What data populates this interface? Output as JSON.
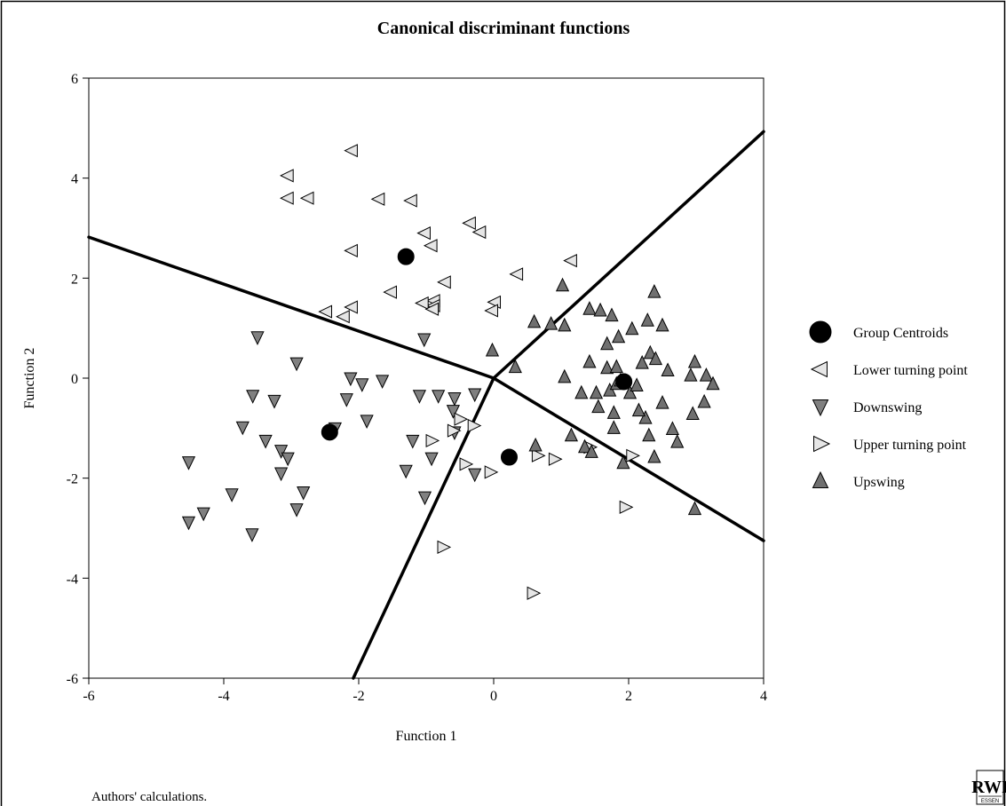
{
  "chart_data": {
    "type": "scatter",
    "title": "Canonical discriminant functions",
    "xlabel": "Function 1",
    "ylabel": "Function 2",
    "xlim": [
      -6,
      4
    ],
    "ylim": [
      -6,
      6
    ],
    "xticks": [
      "-6",
      "-4",
      "-2",
      "0",
      "2",
      "4"
    ],
    "yticks": [
      "-6",
      "-4",
      "-2",
      "0",
      "2",
      "4",
      "6"
    ],
    "grid": false,
    "legend_placement": "right",
    "boundaries": [
      [
        [
          -6.0,
          2.82
        ],
        [
          0.0,
          0.0
        ]
      ],
      [
        [
          0.0,
          0.0
        ],
        [
          4.0,
          4.93
        ]
      ],
      [
        [
          0.0,
          0.0
        ],
        [
          4.0,
          -3.25
        ]
      ],
      [
        [
          0.0,
          0.0
        ],
        [
          -2.08,
          -6.0
        ]
      ]
    ],
    "series": [
      {
        "name": "Group Centroids",
        "marker": "circle",
        "color": "#000000",
        "points": [
          [
            -1.3,
            2.43
          ],
          [
            -2.43,
            -1.08
          ],
          [
            0.23,
            -1.58
          ],
          [
            1.93,
            -0.07
          ]
        ]
      },
      {
        "name": "Lower turning point",
        "marker": "triangle-left",
        "color": "#e6e6e6",
        "points": [
          [
            -2.1,
            4.55
          ],
          [
            -3.05,
            4.05
          ],
          [
            -3.05,
            3.6
          ],
          [
            -2.75,
            3.6
          ],
          [
            -1.7,
            3.58
          ],
          [
            -1.22,
            3.55
          ],
          [
            -0.35,
            3.1
          ],
          [
            -0.2,
            2.92
          ],
          [
            -1.02,
            2.9
          ],
          [
            -0.92,
            2.65
          ],
          [
            -2.1,
            2.55
          ],
          [
            1.15,
            2.35
          ],
          [
            0.35,
            2.08
          ],
          [
            -0.72,
            1.92
          ],
          [
            -1.52,
            1.72
          ],
          [
            -0.88,
            1.55
          ],
          [
            -0.88,
            1.45
          ],
          [
            -1.05,
            1.5
          ],
          [
            -0.9,
            1.38
          ],
          [
            0.02,
            1.52
          ],
          [
            -0.02,
            1.35
          ],
          [
            -2.1,
            1.42
          ],
          [
            -2.48,
            1.33
          ],
          [
            -2.22,
            1.23
          ]
        ]
      },
      {
        "name": "Downswing",
        "marker": "triangle-down",
        "color": "#808080",
        "points": [
          [
            -3.5,
            0.82
          ],
          [
            -1.03,
            0.78
          ],
          [
            -2.92,
            0.3
          ],
          [
            -3.57,
            -0.35
          ],
          [
            -3.25,
            -0.45
          ],
          [
            -3.72,
            -0.98
          ],
          [
            -3.38,
            -1.25
          ],
          [
            -2.12,
            0.0
          ],
          [
            -1.95,
            -0.12
          ],
          [
            -1.65,
            -0.05
          ],
          [
            -2.18,
            -0.42
          ],
          [
            -1.88,
            -0.85
          ],
          [
            -2.35,
            -1.0
          ],
          [
            -3.15,
            -1.45
          ],
          [
            -3.05,
            -1.6
          ],
          [
            -3.15,
            -1.9
          ],
          [
            -4.52,
            -1.68
          ],
          [
            -3.88,
            -2.32
          ],
          [
            -2.82,
            -2.28
          ],
          [
            -2.92,
            -2.62
          ],
          [
            -4.52,
            -2.88
          ],
          [
            -4.3,
            -2.7
          ],
          [
            -3.58,
            -3.12
          ],
          [
            -1.1,
            -0.35
          ],
          [
            -0.82,
            -0.35
          ],
          [
            -0.58,
            -0.4
          ],
          [
            -0.28,
            -0.32
          ],
          [
            -0.6,
            -0.65
          ],
          [
            -1.2,
            -1.25
          ],
          [
            -0.92,
            -1.6
          ],
          [
            -1.3,
            -1.85
          ],
          [
            -0.58,
            -1.08
          ],
          [
            -0.28,
            -1.92
          ],
          [
            -1.02,
            -2.38
          ]
        ]
      },
      {
        "name": "Upper turning point",
        "marker": "triangle-right",
        "color": "#e6e6e6",
        "points": [
          [
            -0.5,
            -0.82
          ],
          [
            -0.3,
            -0.95
          ],
          [
            -0.6,
            -1.05
          ],
          [
            -0.92,
            -1.25
          ],
          [
            -0.42,
            -1.72
          ],
          [
            -0.05,
            -1.88
          ],
          [
            0.65,
            -1.55
          ],
          [
            0.9,
            -1.62
          ],
          [
            1.42,
            -1.38
          ],
          [
            2.05,
            -1.55
          ],
          [
            1.95,
            -2.58
          ],
          [
            -0.75,
            -3.38
          ],
          [
            0.58,
            -4.3
          ]
        ]
      },
      {
        "name": "Upswing",
        "marker": "triangle-up",
        "color": "#707070",
        "points": [
          [
            1.02,
            1.85
          ],
          [
            2.38,
            1.72
          ],
          [
            1.42,
            1.38
          ],
          [
            1.58,
            1.35
          ],
          [
            1.75,
            1.25
          ],
          [
            2.28,
            1.15
          ],
          [
            0.6,
            1.12
          ],
          [
            0.85,
            1.08
          ],
          [
            1.05,
            1.05
          ],
          [
            2.5,
            1.05
          ],
          [
            2.05,
            0.98
          ],
          [
            1.68,
            0.68
          ],
          [
            1.85,
            0.82
          ],
          [
            -0.02,
            0.55
          ],
          [
            1.42,
            0.32
          ],
          [
            1.68,
            0.2
          ],
          [
            1.82,
            0.22
          ],
          [
            2.2,
            0.3
          ],
          [
            2.32,
            0.5
          ],
          [
            2.4,
            0.38
          ],
          [
            2.58,
            0.15
          ],
          [
            2.98,
            0.32
          ],
          [
            3.15,
            0.05
          ],
          [
            3.25,
            -0.12
          ],
          [
            2.92,
            0.05
          ],
          [
            1.05,
            0.02
          ],
          [
            1.3,
            -0.3
          ],
          [
            1.52,
            -0.3
          ],
          [
            1.72,
            -0.25
          ],
          [
            1.82,
            -0.12
          ],
          [
            1.88,
            -0.05
          ],
          [
            2.02,
            -0.3
          ],
          [
            2.12,
            -0.15
          ],
          [
            1.55,
            -0.58
          ],
          [
            2.25,
            -0.8
          ],
          [
            2.15,
            -0.65
          ],
          [
            1.78,
            -0.7
          ],
          [
            1.78,
            -1.0
          ],
          [
            2.5,
            -0.5
          ],
          [
            2.65,
            -1.02
          ],
          [
            2.72,
            -1.28
          ],
          [
            2.95,
            -0.72
          ],
          [
            3.12,
            -0.48
          ],
          [
            0.32,
            0.22
          ],
          [
            0.62,
            -1.35
          ],
          [
            1.15,
            -1.15
          ],
          [
            1.35,
            -1.38
          ],
          [
            1.45,
            -1.48
          ],
          [
            1.92,
            -1.7
          ],
          [
            2.38,
            -1.58
          ],
          [
            2.3,
            -1.15
          ],
          [
            2.98,
            -2.62
          ]
        ]
      }
    ],
    "note": "Authors' calculations."
  },
  "logo": {
    "text": "RWI",
    "subtext": "ESSEN"
  }
}
